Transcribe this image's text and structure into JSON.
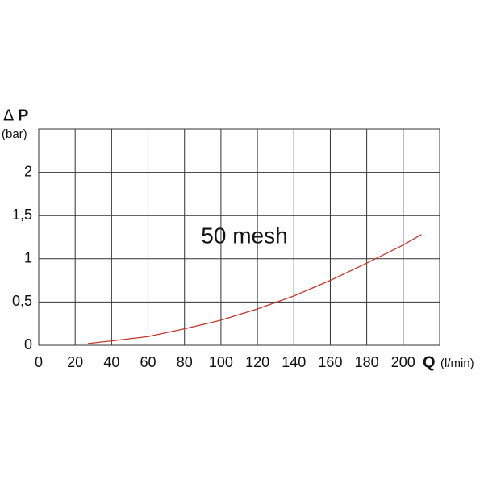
{
  "chart_data": {
    "type": "line",
    "ylabel_symbol": "Δ",
    "ylabel": "P",
    "yunit": "(bar)",
    "xlabel": "Q",
    "xunit": "(l/min)",
    "annotation": "50 mesh",
    "x": [
      27,
      40,
      60,
      80,
      100,
      120,
      140,
      160,
      180,
      200,
      210
    ],
    "values": [
      0.02,
      0.05,
      0.1,
      0.19,
      0.29,
      0.42,
      0.57,
      0.75,
      0.95,
      1.16,
      1.28
    ],
    "color": "#c0392b",
    "xlim": [
      0,
      220
    ],
    "xticks": [
      0,
      20,
      40,
      60,
      80,
      100,
      120,
      140,
      160,
      180,
      200
    ],
    "ylim": [
      0,
      2.5
    ],
    "yticks": [
      0,
      {
        "value": 0.5,
        "label": "0,5"
      },
      1,
      {
        "value": 1.5,
        "label": "1,5"
      },
      2
    ],
    "grid": true
  }
}
